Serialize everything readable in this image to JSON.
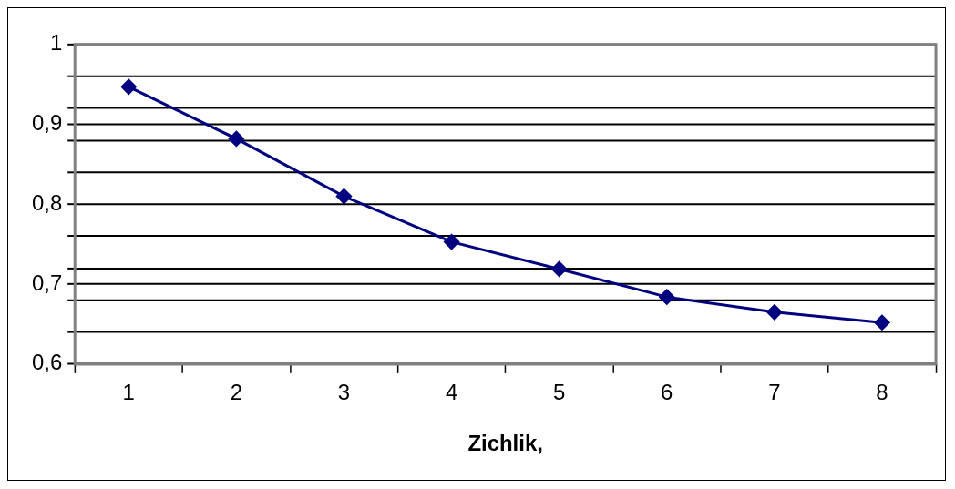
{
  "chart_data": {
    "type": "line",
    "xlabel": "Zichlik,",
    "categories": [
      "1",
      "2",
      "3",
      "4",
      "5",
      "6",
      "7",
      "8"
    ],
    "series": [
      {
        "color": "#000080",
        "values": [
          0.947,
          0.882,
          0.81,
          0.753,
          0.719,
          0.684,
          0.665,
          0.652
        ]
      }
    ],
    "ylim": [
      0.6,
      1
    ],
    "yticks": [
      1,
      {
        "value": 0.96,
        "label": null
      },
      {
        "value": 0.9,
        "label": "0,9"
      },
      {
        "value": 0.92,
        "label": null
      },
      {
        "value": 0.88,
        "label": null
      },
      {
        "value": 0.84,
        "label": null
      },
      {
        "value": 0.8,
        "label": "0,8"
      },
      {
        "value": 0.76,
        "label": null
      },
      {
        "value": 0.72,
        "label": null
      },
      {
        "value": 0.7,
        "label": "0,7"
      },
      {
        "value": 0.68,
        "label": null
      },
      {
        "value": 0.64,
        "label": null
      },
      {
        "value": 0.6,
        "label": "0,6"
      }
    ],
    "grid": "y",
    "legend": false,
    "marker": "diamond",
    "line_style": "solid"
  }
}
